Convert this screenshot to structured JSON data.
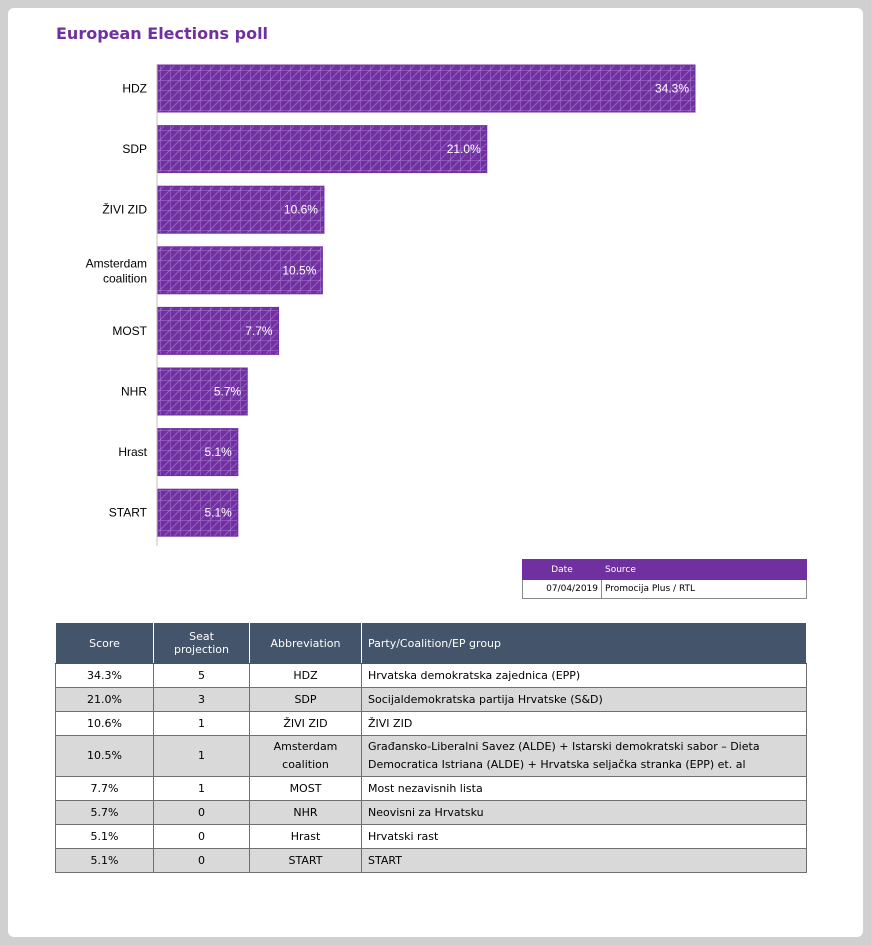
{
  "title": "European Elections poll",
  "chart_data": {
    "type": "bar",
    "orientation": "horizontal",
    "categories": [
      "HDZ",
      "SDP",
      "ŽIVI ZID",
      "Amsterdam coalition",
      "MOST",
      "NHR",
      "Hrast",
      "START"
    ],
    "values": [
      34.3,
      21.0,
      10.6,
      10.5,
      7.7,
      5.7,
      5.1,
      5.1
    ],
    "data_labels": [
      "34.3%",
      "21.0%",
      "10.6%",
      "10.5%",
      "7.7%",
      "5.7%",
      "5.1%",
      "5.1%"
    ],
    "xlim": [
      0,
      34.3
    ],
    "bar_color": "#7030a0",
    "pattern": "grid-hatch",
    "grid": false,
    "legend": "none"
  },
  "meta": {
    "headers": {
      "date": "Date",
      "source": "Source"
    },
    "date": "07/04/2019",
    "source": "Promocija Plus / RTL"
  },
  "table": {
    "headers": [
      "Score",
      "Seat projection",
      "Abbreviation",
      "Party/Coalition/EP group"
    ],
    "rows": [
      {
        "score": "34.3%",
        "seats": "5",
        "abbr": "HDZ",
        "party": "Hrvatska demokratska zajednica (EPP)"
      },
      {
        "score": "21.0%",
        "seats": "3",
        "abbr": "SDP",
        "party": "Socijaldemokratska partija Hrvatske (S&D)"
      },
      {
        "score": "10.6%",
        "seats": "1",
        "abbr": "ŽIVI ZID",
        "party": "ŽIVI ZID"
      },
      {
        "score": "10.5%",
        "seats": "1",
        "abbr": "Amsterdam coalition",
        "party": "Građansko-Liberalni Savez (ALDE) + Istarski demokratski sabor – Dieta Democratica Istriana (ALDE) + Hrvatska seljačka stranka (EPP) et. al"
      },
      {
        "score": "7.7%",
        "seats": "1",
        "abbr": "MOST",
        "party": "Most nezavisnih lista"
      },
      {
        "score": "5.7%",
        "seats": "0",
        "abbr": "NHR",
        "party": "Neovisni za Hrvatsku"
      },
      {
        "score": "5.1%",
        "seats": "0",
        "abbr": "Hrast",
        "party": "Hrvatski rast"
      },
      {
        "score": "5.1%",
        "seats": "0",
        "abbr": "START",
        "party": "START"
      }
    ]
  }
}
